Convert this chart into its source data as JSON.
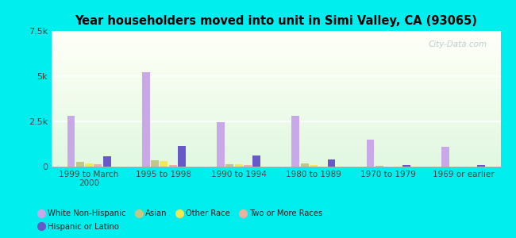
{
  "title": "Year householders moved into unit in Simi Valley, CA (93065)",
  "categories": [
    "1999 to March\n2000",
    "1995 to 1998",
    "1990 to 1994",
    "1980 to 1989",
    "1970 to 1979",
    "1969 or earlier"
  ],
  "series": {
    "White Non-Hispanic": [
      2800,
      5200,
      2450,
      2800,
      1500,
      1100
    ],
    "Asian": [
      280,
      340,
      130,
      180,
      25,
      0
    ],
    "Other Race": [
      190,
      290,
      120,
      70,
      0,
      0
    ],
    "Two or More Races": [
      130,
      90,
      70,
      0,
      0,
      0
    ],
    "Hispanic or Latino": [
      550,
      1150,
      600,
      400,
      100,
      100
    ]
  },
  "colors": {
    "White Non-Hispanic": "#c8a8e8",
    "Asian": "#c0c888",
    "Other Race": "#f0e855",
    "Two or More Races": "#f0b0a0",
    "Hispanic or Latino": "#6858c8"
  },
  "ylim": [
    0,
    7500
  ],
  "yticks": [
    0,
    2500,
    5000,
    7500
  ],
  "ytick_labels": [
    "0",
    "2.5k",
    "5k",
    "7.5k"
  ],
  "background_color": "#00eeee",
  "watermark": "City-Data.com",
  "bar_width": 0.12
}
